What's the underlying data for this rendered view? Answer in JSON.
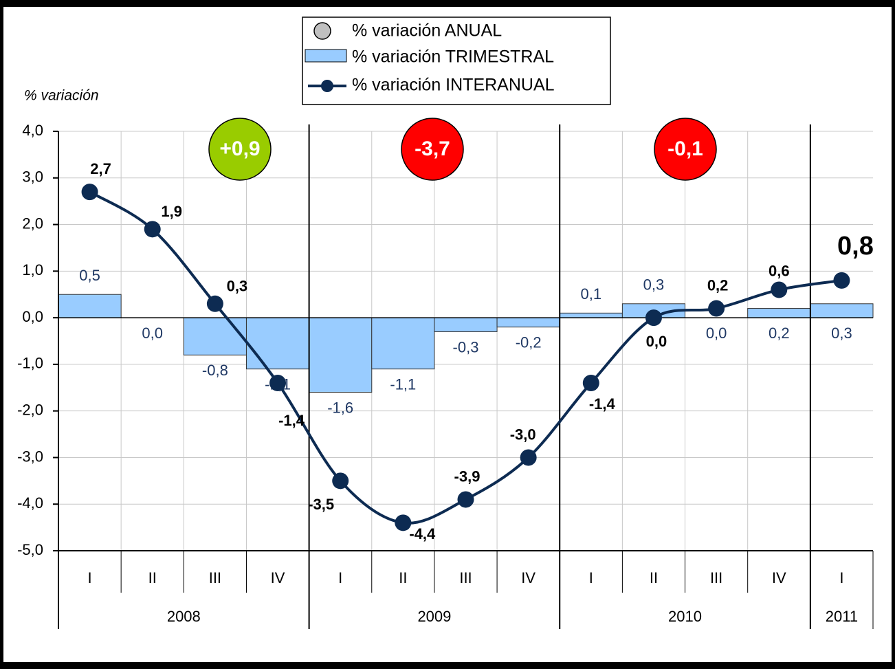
{
  "chart_data": {
    "type": "bar_line",
    "y_axis_label": "% variación",
    "legend": [
      "% variación ANUAL",
      "% variación TRIMESTRAL",
      "% variación INTERANUAL"
    ],
    "categories": [
      "I",
      "II",
      "III",
      "IV",
      "I",
      "II",
      "III",
      "IV",
      "I",
      "II",
      "III",
      "IV",
      "I"
    ],
    "years": [
      {
        "label": "2008",
        "quarters": 4
      },
      {
        "label": "2009",
        "quarters": 4
      },
      {
        "label": "2010",
        "quarters": 4
      },
      {
        "label": "2011",
        "quarters": 1
      }
    ],
    "annual": {
      "name": "% variación ANUAL",
      "values": [
        0.9,
        -3.7,
        -0.1
      ],
      "value_labels": [
        "+0,9",
        "-3,7",
        "-0,1"
      ],
      "colors": [
        "#99cc00",
        "#ff0000",
        "#ff0000"
      ]
    },
    "series": [
      {
        "name": "% variación TRIMESTRAL",
        "kind": "bar",
        "color": "#99ccff",
        "values": [
          0.5,
          0.0,
          -0.8,
          -1.1,
          -1.6,
          -1.1,
          -0.3,
          -0.2,
          0.1,
          0.3,
          0.0,
          0.2,
          0.3
        ],
        "value_labels": [
          "0,5",
          "0,0",
          "-0,8",
          "-1,1",
          "-1,6",
          "-1,1",
          "-0,3",
          "-0,2",
          "0,1",
          "0,3",
          "0,0",
          "0,2",
          "0,3"
        ]
      },
      {
        "name": "% variación INTERANUAL",
        "kind": "line",
        "color": "#0d2b52",
        "values": [
          2.7,
          1.9,
          0.3,
          -1.4,
          -3.5,
          -4.4,
          -3.9,
          -3.0,
          -1.4,
          0.0,
          0.2,
          0.6,
          0.8
        ],
        "value_labels": [
          "2,7",
          "1,9",
          "0,3",
          "-1,4",
          "-3,5",
          "-4,4",
          "-3,9",
          "-3,0",
          "-1,4",
          "0,0",
          "0,2",
          "0,6",
          "0,8"
        ]
      }
    ],
    "ylim": [
      -5,
      4
    ],
    "yticks": [
      {
        "value": -5,
        "label": "-5,0"
      },
      {
        "value": -4,
        "label": "-4,0"
      },
      {
        "value": -3,
        "label": "-3,0"
      },
      {
        "value": -2,
        "label": "-2,0"
      },
      {
        "value": -1,
        "label": "-1,0"
      },
      {
        "value": 0,
        "label": "0,0"
      },
      {
        "value": 1,
        "label": "1,0"
      },
      {
        "value": 2,
        "label": "2,0"
      },
      {
        "value": 3,
        "label": "3,0"
      },
      {
        "value": 4,
        "label": "4,0"
      }
    ],
    "grid": true
  }
}
